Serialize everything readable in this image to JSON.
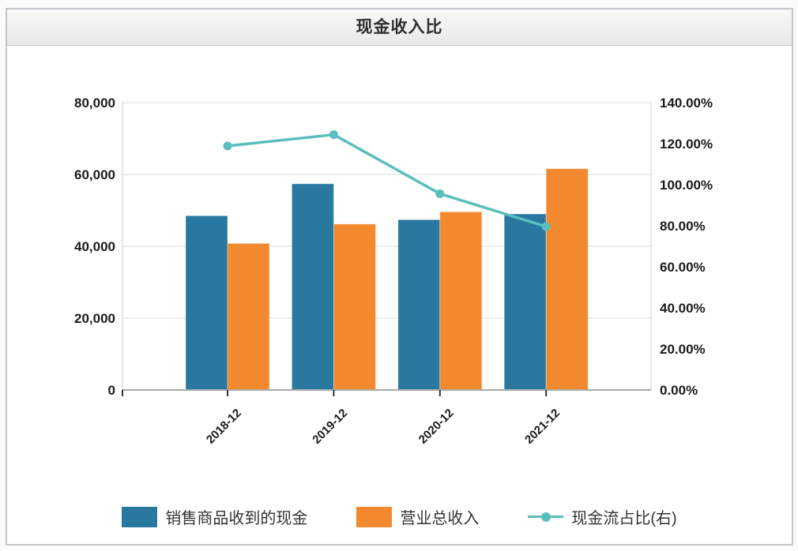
{
  "page": {
    "title": "现金收入比"
  },
  "chart_data": {
    "type": "combo",
    "categories": [
      "2018-12",
      "2019-12",
      "2020-12",
      "2021-12"
    ],
    "series": [
      {
        "name": "销售商品收到的现金",
        "type": "bar",
        "axis": "left",
        "color": "#2878A0",
        "values": [
          48500,
          57400,
          47400,
          49000
        ]
      },
      {
        "name": "营业总收入",
        "type": "bar",
        "axis": "left",
        "color": "#F2892E",
        "values": [
          40800,
          46200,
          49600,
          61600
        ]
      },
      {
        "name": "现金流占比(右)",
        "type": "line",
        "axis": "right",
        "color": "#5ABFBC",
        "unit": "%",
        "values": [
          118.9,
          124.4,
          95.6,
          79.6
        ]
      }
    ],
    "left_axis": {
      "min": 0,
      "max": 80000,
      "tick_step": 20000,
      "tick_labels": [
        "0",
        "20,000",
        "40,000",
        "60,000",
        "80,000"
      ]
    },
    "right_axis": {
      "min": 0,
      "max": 140,
      "tick_step": 20,
      "tick_labels": [
        "0.00%",
        "20.00%",
        "40.00%",
        "60.00%",
        "80.00%",
        "100.00%",
        "120.00%",
        "140.00%"
      ]
    },
    "grid": true,
    "legend_position": "bottom",
    "title": "现金收入比"
  }
}
